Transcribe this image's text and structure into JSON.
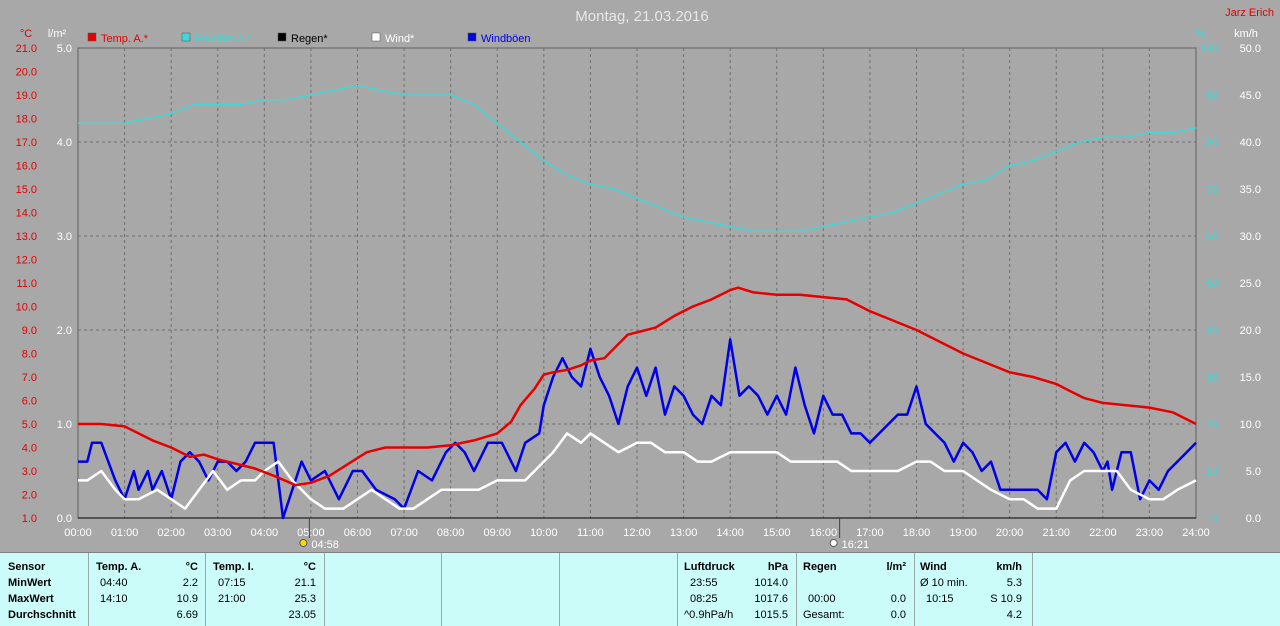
{
  "title": "Montag, 21.03.2016",
  "station": "Jarz Erich",
  "colors": {
    "temp": "#e60000",
    "humidity": "#3fd7d7",
    "rain": "#000000",
    "wind": "#ffffff",
    "gust": "#0000e6",
    "bg": "#a8a8a8",
    "grid": "#707070",
    "left_axis": "#e60000",
    "hum_axis": "#3fd7d7",
    "panel": "#ccfcfa"
  },
  "sunrise": "04:58",
  "sunset": "16:21",
  "chart_data": {
    "type": "line",
    "x_unit": "hours",
    "x_ticks": [
      "00:00",
      "01:00",
      "02:00",
      "03:00",
      "04:00",
      "05:00",
      "06:00",
      "07:00",
      "08:00",
      "09:00",
      "10:00",
      "11:00",
      "12:00",
      "13:00",
      "14:00",
      "15:00",
      "16:00",
      "17:00",
      "18:00",
      "19:00",
      "20:00",
      "21:00",
      "22:00",
      "23:00",
      "24:00"
    ],
    "axes": {
      "temp": {
        "unit": "°C",
        "min": 1.0,
        "max": 21.0,
        "ticks": [
          "1.0",
          "2.0",
          "3.0",
          "4.0",
          "5.0",
          "6.0",
          "7.0",
          "8.0",
          "9.0",
          "10.0",
          "11.0",
          "12.0",
          "13.0",
          "14.0",
          "15.0",
          "16.0",
          "17.0",
          "18.0",
          "19.0",
          "20.0",
          "21.0"
        ]
      },
      "rain": {
        "unit": "l/m²",
        "min": 0.0,
        "max": 5.0,
        "ticks": [
          "0.0",
          "1.0",
          "2.0",
          "3.0",
          "4.0",
          "5.0"
        ]
      },
      "humidity": {
        "unit": "%",
        "min": 0,
        "max": 100,
        "ticks": [
          "0",
          "10",
          "20",
          "30",
          "40",
          "50",
          "60",
          "70",
          "80",
          "90",
          "100"
        ]
      },
      "wind": {
        "unit": "km/h",
        "min": 0.0,
        "max": 50.0,
        "ticks": [
          "0.0",
          "5.0",
          "10.0",
          "15.0",
          "20.0",
          "25.0",
          "30.0",
          "35.0",
          "40.0",
          "45.0",
          "50.0"
        ]
      }
    },
    "legend": [
      {
        "name": "Temp. A.*",
        "color": "#e60000"
      },
      {
        "name": "Feuchte A.*",
        "color": "#3fd7d7"
      },
      {
        "name": "Regen*",
        "color": "#000000"
      },
      {
        "name": "Wind*",
        "color": "#ffffff"
      },
      {
        "name": "Windböen",
        "color": "#0000e6"
      }
    ],
    "series": [
      {
        "name": "Temp. A.*",
        "axis": "temp",
        "color": "#e60000",
        "x": [
          0,
          0.5,
          1.0,
          1.3,
          1.6,
          2.0,
          2.4,
          2.7,
          3.0,
          3.4,
          3.8,
          4.2,
          4.67,
          5.0,
          5.4,
          5.8,
          6.2,
          6.6,
          7.0,
          7.5,
          8.0,
          8.5,
          9.0,
          9.3,
          9.5,
          9.8,
          10.0,
          10.2,
          10.5,
          10.8,
          11.0,
          11.3,
          11.5,
          11.8,
          12.0,
          12.4,
          12.8,
          13.2,
          13.6,
          14.0,
          14.17,
          14.5,
          15.0,
          15.5,
          16.0,
          16.5,
          17.0,
          17.5,
          18.0,
          18.5,
          19.0,
          19.5,
          20.0,
          20.5,
          21.0,
          21.3,
          21.6,
          22.0,
          22.5,
          23.0,
          23.5,
          24.0
        ],
        "y": [
          5.0,
          5.0,
          4.9,
          4.6,
          4.3,
          4.0,
          3.6,
          3.7,
          3.5,
          3.3,
          3.1,
          2.8,
          2.4,
          2.5,
          2.8,
          3.3,
          3.8,
          4.0,
          4.0,
          4.0,
          4.1,
          4.3,
          4.6,
          5.1,
          5.8,
          6.5,
          7.1,
          7.2,
          7.3,
          7.5,
          7.7,
          7.8,
          8.2,
          8.8,
          8.9,
          9.1,
          9.6,
          10.0,
          10.3,
          10.7,
          10.8,
          10.6,
          10.5,
          10.5,
          10.4,
          10.3,
          9.8,
          9.4,
          9.0,
          8.5,
          8.0,
          7.6,
          7.2,
          7.0,
          6.7,
          6.4,
          6.1,
          5.9,
          5.8,
          5.7,
          5.5,
          5.0
        ]
      },
      {
        "name": "Feuchte A.*",
        "axis": "humidity",
        "color": "#3fd7d7",
        "x": [
          0,
          0.5,
          1.0,
          1.5,
          2.0,
          2.5,
          3.0,
          3.5,
          4.0,
          4.5,
          5.0,
          5.5,
          6.0,
          6.5,
          7.0,
          7.5,
          8.0,
          8.5,
          9.0,
          9.5,
          10.0,
          10.5,
          11.0,
          11.5,
          12.0,
          12.5,
          13.0,
          13.5,
          14.0,
          14.5,
          15.0,
          15.5,
          16.0,
          16.5,
          17.0,
          17.5,
          18.0,
          18.5,
          19.0,
          19.5,
          20.0,
          20.5,
          21.0,
          21.5,
          22.0,
          22.5,
          23.0,
          23.5,
          24.0
        ],
        "y": [
          84,
          84,
          84,
          85,
          86,
          88,
          88,
          88,
          89,
          89,
          90,
          91,
          92,
          91,
          90,
          90,
          90,
          88,
          84,
          80,
          76,
          73,
          71,
          70,
          68,
          66,
          64,
          63,
          62,
          61,
          61,
          61,
          62,
          63,
          64,
          65,
          67,
          69,
          71,
          72,
          75,
          76,
          78,
          80,
          81,
          81,
          82,
          82,
          83
        ]
      },
      {
        "name": "Regen*",
        "axis": "rain",
        "color": "#000000",
        "x": [
          0,
          24
        ],
        "y": [
          0.0,
          0.0
        ]
      },
      {
        "name": "Wind*",
        "axis": "wind",
        "color": "#ffffff",
        "x": [
          0,
          0.2,
          0.5,
          0.8,
          1.0,
          1.3,
          1.7,
          2.0,
          2.3,
          2.6,
          2.9,
          3.2,
          3.5,
          3.8,
          4.0,
          4.3,
          4.6,
          5.0,
          5.3,
          5.7,
          6.0,
          6.3,
          6.6,
          6.9,
          7.2,
          7.5,
          7.8,
          8.0,
          8.3,
          8.6,
          9.0,
          9.3,
          9.6,
          9.8,
          10.0,
          10.2,
          10.5,
          10.8,
          11.0,
          11.3,
          11.6,
          12.0,
          12.3,
          12.6,
          13.0,
          13.3,
          13.6,
          14.0,
          14.3,
          14.6,
          15.0,
          15.3,
          15.6,
          16.0,
          16.3,
          16.6,
          17.0,
          17.3,
          17.6,
          18.0,
          18.3,
          18.6,
          19.0,
          19.3,
          19.6,
          20.0,
          20.3,
          20.6,
          21.0,
          21.3,
          21.6,
          22.0,
          22.3,
          22.6,
          23.0,
          23.3,
          23.6,
          24.0
        ],
        "y": [
          4,
          4,
          5,
          3,
          2,
          2,
          3,
          2,
          1,
          3,
          5,
          3,
          4,
          4,
          5,
          6,
          4,
          2,
          1,
          1,
          2,
          3,
          2,
          1,
          1,
          2,
          3,
          3,
          3,
          3,
          4,
          4,
          4,
          5,
          6,
          7,
          9,
          8,
          9,
          8,
          7,
          8,
          8,
          7,
          7,
          6,
          6,
          7,
          7,
          7,
          7,
          6,
          6,
          6,
          6,
          5,
          5,
          5,
          5,
          6,
          6,
          5,
          5,
          4,
          3,
          2,
          2,
          1,
          1,
          4,
          5,
          5,
          5,
          3,
          2,
          2,
          3,
          4
        ]
      },
      {
        "name": "Windböen",
        "axis": "wind",
        "color": "#0000e6",
        "x": [
          0,
          0.2,
          0.3,
          0.5,
          0.8,
          1.0,
          1.2,
          1.3,
          1.5,
          1.6,
          1.8,
          2.0,
          2.2,
          2.4,
          2.6,
          2.8,
          3.0,
          3.2,
          3.4,
          3.6,
          3.8,
          4.0,
          4.2,
          4.4,
          4.6,
          4.8,
          5.0,
          5.3,
          5.6,
          5.9,
          6.1,
          6.4,
          6.8,
          7.0,
          7.3,
          7.6,
          7.9,
          8.1,
          8.3,
          8.5,
          8.8,
          9.1,
          9.4,
          9.6,
          9.9,
          10.0,
          10.2,
          10.4,
          10.6,
          10.8,
          11.0,
          11.2,
          11.4,
          11.6,
          11.8,
          12.0,
          12.2,
          12.4,
          12.6,
          12.8,
          13.0,
          13.2,
          13.4,
          13.6,
          13.8,
          14.0,
          14.2,
          14.4,
          14.6,
          14.8,
          15.0,
          15.2,
          15.4,
          15.6,
          15.8,
          16.0,
          16.2,
          16.4,
          16.6,
          16.8,
          17.0,
          17.2,
          17.4,
          17.6,
          17.8,
          18.0,
          18.2,
          18.4,
          18.6,
          18.8,
          19.0,
          19.2,
          19.4,
          19.6,
          19.8,
          20.0,
          20.3,
          20.6,
          20.8,
          21.0,
          21.2,
          21.4,
          21.6,
          21.8,
          22.0,
          22.1,
          22.2,
          22.4,
          22.6,
          22.8,
          23.0,
          23.2,
          23.4,
          23.6,
          23.8,
          24.0
        ],
        "y": [
          6,
          6,
          8,
          8,
          4,
          2,
          5,
          3,
          5,
          3,
          5,
          2,
          6,
          7,
          6,
          4,
          6,
          6,
          5,
          6,
          8,
          8,
          8,
          0,
          3,
          6,
          4,
          5,
          2,
          5,
          5,
          3,
          2,
          1,
          5,
          4,
          7,
          8,
          7,
          5,
          8,
          8,
          5,
          8,
          9,
          12,
          15,
          17,
          15,
          14,
          18,
          15,
          13,
          10,
          14,
          16,
          13,
          16,
          11,
          14,
          13,
          11,
          10,
          13,
          12,
          19,
          13,
          14,
          13,
          11,
          13,
          11,
          16,
          12,
          9,
          13,
          11,
          11,
          9,
          9,
          8,
          9,
          10,
          11,
          11,
          14,
          10,
          9,
          8,
          6,
          8,
          7,
          5,
          6,
          3,
          3,
          3,
          3,
          2,
          7,
          8,
          6,
          8,
          7,
          5,
          6,
          3,
          7,
          7,
          2,
          4,
          3,
          5,
          6,
          7,
          8
        ]
      }
    ]
  },
  "stats": {
    "headers": {
      "sensor": "Sensor",
      "temp_a": "Temp. A.",
      "temp_a_unit": "°C",
      "temp_i": "Temp. I.",
      "temp_i_unit": "°C",
      "pressure": "Luftdruck",
      "pressure_unit": "hPa",
      "rain": "Regen",
      "rain_unit": "l/m²",
      "wind": "Wind",
      "wind_unit": "km/h"
    },
    "rows": [
      {
        "label": "MinWert",
        "temp_a_time": "04:40",
        "temp_a_val": "2.2",
        "temp_i_time": "07:15",
        "temp_i_val": "21.1",
        "p_time": "23:55",
        "p_val": "1014.0",
        "rain_time": "",
        "rain_val": "",
        "wind_label": "Ø 10 min.",
        "wind_val": "5.3"
      },
      {
        "label": "MaxWert",
        "temp_a_time": "14:10",
        "temp_a_val": "10.9",
        "temp_i_time": "21:00",
        "temp_i_val": "25.3",
        "p_time": "08:25",
        "p_val": "1017.6",
        "rain_time": "00:00",
        "rain_val": "0.0",
        "wind_label": "10:15",
        "wind_val": "S 10.9"
      },
      {
        "label": "Durchschnitt",
        "temp_a_time": "",
        "temp_a_val": "6.69",
        "temp_i_time": "",
        "temp_i_val": "23.05",
        "p_time": "^0.9hPa/h",
        "p_val": "1015.5",
        "rain_time": "Gesamt:",
        "rain_val": "0.0",
        "wind_label": "",
        "wind_val": "4.2"
      }
    ]
  }
}
